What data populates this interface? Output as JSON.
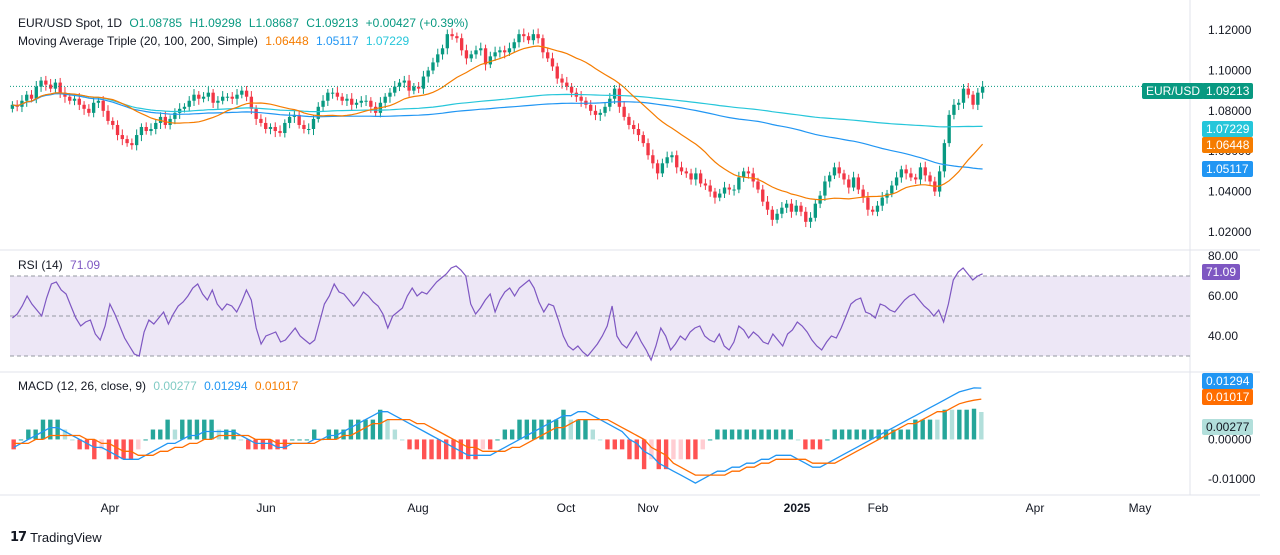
{
  "header": {
    "symbol": "EUR/USD Spot, 1D",
    "ohlc": {
      "o": "O1.08785",
      "h": "H1.09298",
      "l": "L1.08687",
      "c": "C1.09213",
      "change": "+0.00427 (+0.39%)"
    },
    "ma_title": "Moving Average Triple (20, 100, 200, Simple)",
    "ma_values": [
      "1.06448",
      "1.05117",
      "1.07229"
    ],
    "rsi_title": "RSI (14)",
    "rsi_value": "71.09",
    "macd_title": "MACD (12, 26, close, 9)",
    "macd_values": [
      "0.00277",
      "0.01294",
      "0.01017"
    ]
  },
  "price_tags": {
    "symbol_label": "EUR/USD",
    "last": "1.09213",
    "ma200": "1.07229",
    "ma20": "1.06448",
    "ma100": "1.05117",
    "rsi": "71.09",
    "macd": "0.01294",
    "signal": "0.01017",
    "hist": "0.00277"
  },
  "footer": {
    "brand": "TradingView",
    "logo_glyph": "17"
  },
  "colors": {
    "up": "#089981",
    "down": "#f23645",
    "ma20": "#f57c00",
    "ma100": "#2196f3",
    "ma200": "#26c6da",
    "rsi": "#7e57c2",
    "rsi_band": "#ede7f6",
    "macd": "#2196f3",
    "signal": "#ff6d00",
    "hist_up_strong": "#26a69a",
    "hist_up_weak": "#b2dfdb",
    "hist_down_strong": "#ff5252",
    "hist_down_weak": "#ffcdd2"
  },
  "chart_data": [
    {
      "type": "candlestick",
      "title": "EUR/USD Spot, 1D",
      "ylim": [
        1.015,
        1.127
      ],
      "y_ticks": [
        "1.12000",
        "1.10000",
        "1.08000",
        "1.06000",
        "1.04000",
        "1.02000"
      ],
      "x_ticks": [
        "Apr",
        "Jun",
        "Aug",
        "Oct",
        "Nov",
        "2025",
        "Feb",
        "Apr",
        "May"
      ],
      "last_close": 1.09213,
      "closes": [
        1.083,
        1.082,
        1.085,
        1.088,
        1.086,
        1.092,
        1.095,
        1.093,
        1.091,
        1.094,
        1.089,
        1.087,
        1.085,
        1.086,
        1.083,
        1.081,
        1.079,
        1.084,
        1.085,
        1.08,
        1.075,
        1.073,
        1.068,
        1.066,
        1.064,
        1.063,
        1.068,
        1.072,
        1.07,
        1.071,
        1.074,
        1.077,
        1.073,
        1.076,
        1.079,
        1.081,
        1.082,
        1.085,
        1.088,
        1.086,
        1.087,
        1.089,
        1.084,
        1.085,
        1.087,
        1.087,
        1.086,
        1.088,
        1.09,
        1.087,
        1.081,
        1.076,
        1.074,
        1.071,
        1.072,
        1.07,
        1.069,
        1.074,
        1.077,
        1.078,
        1.073,
        1.071,
        1.071,
        1.076,
        1.082,
        1.085,
        1.089,
        1.089,
        1.087,
        1.085,
        1.086,
        1.083,
        1.084,
        1.085,
        1.085,
        1.082,
        1.079,
        1.084,
        1.087,
        1.089,
        1.092,
        1.094,
        1.095,
        1.09,
        1.092,
        1.091,
        1.097,
        1.1,
        1.104,
        1.108,
        1.111,
        1.118,
        1.117,
        1.116,
        1.11,
        1.106,
        1.108,
        1.11,
        1.111,
        1.103,
        1.107,
        1.109,
        1.11,
        1.109,
        1.111,
        1.114,
        1.118,
        1.117,
        1.115,
        1.118,
        1.116,
        1.109,
        1.106,
        1.102,
        1.096,
        1.094,
        1.092,
        1.089,
        1.087,
        1.085,
        1.083,
        1.08,
        1.078,
        1.079,
        1.082,
        1.086,
        1.091,
        1.082,
        1.077,
        1.073,
        1.071,
        1.068,
        1.064,
        1.058,
        1.054,
        1.049,
        1.054,
        1.057,
        1.058,
        1.052,
        1.05,
        1.049,
        1.046,
        1.049,
        1.044,
        1.043,
        1.04,
        1.037,
        1.039,
        1.042,
        1.041,
        1.041,
        1.047,
        1.05,
        1.049,
        1.045,
        1.041,
        1.035,
        1.031,
        1.026,
        1.029,
        1.032,
        1.034,
        1.03,
        1.033,
        1.03,
        1.025,
        1.027,
        1.034,
        1.038,
        1.045,
        1.048,
        1.052,
        1.049,
        1.046,
        1.042,
        1.047,
        1.041,
        1.037,
        1.031,
        1.03,
        1.033,
        1.037,
        1.039,
        1.043,
        1.047,
        1.051,
        1.049,
        1.047,
        1.046,
        1.052,
        1.048,
        1.045,
        1.04,
        1.05,
        1.064,
        1.078,
        1.083,
        1.084,
        1.091,
        1.088,
        1.083,
        1.089,
        1.092
      ],
      "series": [
        {
          "name": "MA 20",
          "color": "#f57c00",
          "last": 1.06448
        },
        {
          "name": "MA 100",
          "color": "#2196f3",
          "last": 1.05117
        },
        {
          "name": "MA 200",
          "color": "#26c6da",
          "last": 1.07229
        }
      ]
    },
    {
      "type": "line",
      "title": "RSI (14)",
      "ylim": [
        25,
        80
      ],
      "y_ticks": [
        "80.00",
        "60.00",
        "40.00"
      ],
      "bands": [
        30,
        50,
        70
      ],
      "values": [
        49,
        51,
        55,
        60,
        56,
        53,
        50,
        59,
        66,
        67,
        63,
        61,
        55,
        49,
        45,
        47,
        48,
        41,
        38,
        45,
        56,
        51,
        45,
        39,
        35,
        31,
        30,
        42,
        48,
        46,
        49,
        52,
        46,
        51,
        55,
        57,
        60,
        64,
        66,
        61,
        58,
        63,
        56,
        53,
        56,
        55,
        52,
        57,
        63,
        58,
        44,
        36,
        40,
        41,
        42,
        37,
        38,
        41,
        44,
        40,
        38,
        36,
        38,
        47,
        56,
        60,
        66,
        62,
        61,
        58,
        55,
        58,
        62,
        60,
        57,
        55,
        51,
        44,
        50,
        52,
        54,
        60,
        64,
        60,
        62,
        61,
        64,
        67,
        69,
        71,
        74,
        75,
        73,
        70,
        56,
        51,
        54,
        58,
        61,
        52,
        58,
        62,
        64,
        60,
        64,
        66,
        68,
        64,
        57,
        52,
        56,
        55,
        48,
        40,
        35,
        33,
        35,
        32,
        30,
        33,
        36,
        40,
        45,
        55,
        40,
        36,
        34,
        38,
        42,
        37,
        33,
        28,
        35,
        44,
        40,
        33,
        36,
        40,
        38,
        42,
        44,
        45,
        40,
        38,
        37,
        41,
        35,
        33,
        37,
        45,
        43,
        39,
        42,
        40,
        37,
        36,
        41,
        38,
        35,
        41,
        43,
        47,
        45,
        42,
        38,
        35,
        33,
        37,
        40,
        39,
        44,
        50,
        56,
        58,
        59,
        52,
        51,
        49,
        56,
        55,
        53,
        52,
        55,
        58,
        60,
        61,
        58,
        55,
        53,
        50,
        53,
        47,
        56,
        68,
        72,
        74,
        71,
        68,
        70,
        71.09
      ]
    },
    {
      "type": "line",
      "title": "MACD (12, 26, close, 9)",
      "ylim": [
        -0.0125,
        0.0155
      ],
      "y_ticks": [
        "0.00000",
        "-0.01000"
      ],
      "macd": [
        -0.002,
        -0.001,
        0.0,
        0.001,
        0.002,
        0.003,
        0.003,
        0.002,
        0.001,
        0.0,
        -0.001,
        -0.002,
        -0.002,
        -0.003,
        -0.004,
        -0.005,
        -0.005,
        -0.005,
        -0.004,
        -0.003,
        -0.002,
        -0.001,
        -0.001,
        0.0,
        0.001,
        0.001,
        0.002,
        0.002,
        0.002,
        0.002,
        0.002,
        0.001,
        0.0,
        -0.001,
        -0.001,
        -0.001,
        -0.002,
        -0.002,
        -0.001,
        -0.001,
        -0.001,
        0.0,
        0.0,
        0.001,
        0.001,
        0.002,
        0.003,
        0.004,
        0.005,
        0.006,
        0.007,
        0.007,
        0.006,
        0.005,
        0.004,
        0.003,
        0.002,
        0.001,
        0.0,
        -0.001,
        -0.002,
        -0.003,
        -0.004,
        -0.004,
        -0.004,
        -0.004,
        -0.003,
        -0.002,
        -0.001,
        0.0,
        0.001,
        0.002,
        0.003,
        0.004,
        0.005,
        0.006,
        0.006,
        0.007,
        0.007,
        0.006,
        0.005,
        0.004,
        0.003,
        0.002,
        0.0,
        -0.001,
        -0.003,
        -0.004,
        -0.006,
        -0.007,
        -0.008,
        -0.009,
        -0.01,
        -0.011,
        -0.01,
        -0.009,
        -0.008,
        -0.008,
        -0.007,
        -0.007,
        -0.006,
        -0.006,
        -0.005,
        -0.005,
        -0.004,
        -0.004,
        -0.004,
        -0.005,
        -0.006,
        -0.007,
        -0.007,
        -0.006,
        -0.005,
        -0.004,
        -0.003,
        -0.002,
        -0.001,
        0.0,
        0.001,
        0.002,
        0.003,
        0.004,
        0.005,
        0.006,
        0.007,
        0.008,
        0.009,
        0.01,
        0.011,
        0.012,
        0.0125,
        0.013,
        0.01294
      ],
      "signal": [
        -0.001,
        -0.001,
        -0.001,
        0.0,
        0.0,
        0.001,
        0.001,
        0.001,
        0.001,
        0.001,
        0.0,
        0.0,
        -0.001,
        -0.001,
        -0.002,
        -0.003,
        -0.003,
        -0.004,
        -0.004,
        -0.004,
        -0.003,
        -0.003,
        -0.002,
        -0.002,
        -0.001,
        -0.001,
        0.0,
        0.0,
        0.001,
        0.001,
        0.001,
        0.001,
        0.001,
        0.0,
        0.0,
        0.0,
        -0.001,
        -0.001,
        -0.001,
        -0.001,
        -0.001,
        -0.001,
        0.0,
        0.0,
        0.0,
        0.001,
        0.001,
        0.002,
        0.003,
        0.004,
        0.004,
        0.005,
        0.005,
        0.005,
        0.005,
        0.004,
        0.004,
        0.003,
        0.002,
        0.001,
        0.0,
        -0.001,
        -0.002,
        -0.002,
        -0.003,
        -0.003,
        -0.003,
        -0.003,
        -0.002,
        -0.002,
        -0.001,
        0.0,
        0.001,
        0.002,
        0.003,
        0.003,
        0.004,
        0.005,
        0.005,
        0.005,
        0.005,
        0.005,
        0.004,
        0.003,
        0.002,
        0.001,
        0.0,
        -0.002,
        -0.003,
        -0.004,
        -0.006,
        -0.007,
        -0.008,
        -0.009,
        -0.009,
        -0.009,
        -0.009,
        -0.009,
        -0.008,
        -0.008,
        -0.007,
        -0.007,
        -0.006,
        -0.006,
        -0.005,
        -0.005,
        -0.005,
        -0.005,
        -0.005,
        -0.006,
        -0.006,
        -0.006,
        -0.006,
        -0.005,
        -0.004,
        -0.003,
        -0.002,
        -0.001,
        0.0,
        0.001,
        0.002,
        0.003,
        0.004,
        0.004,
        0.005,
        0.006,
        0.007,
        0.007,
        0.008,
        0.009,
        0.0095,
        0.0099,
        0.01017
      ]
    }
  ]
}
